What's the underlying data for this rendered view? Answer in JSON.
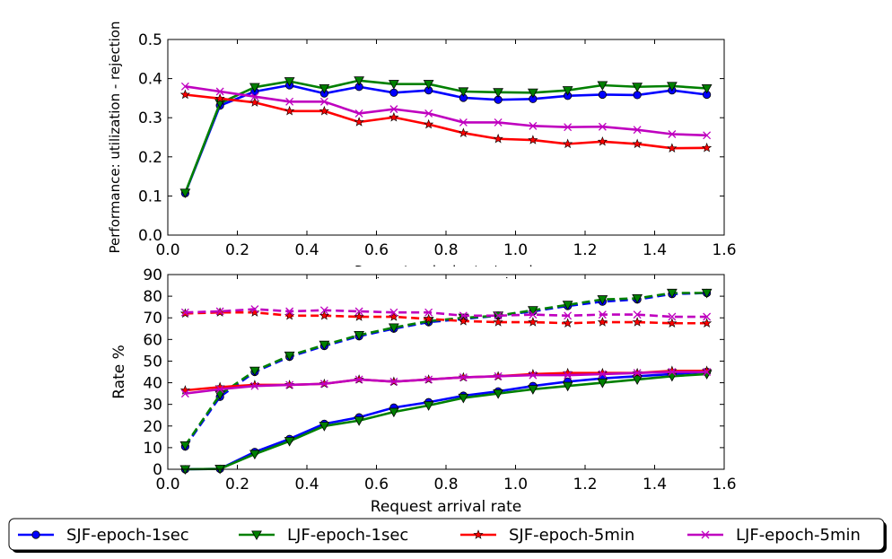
{
  "chart_data": [
    {
      "type": "line",
      "title": "",
      "xlabel": "Request arrival rate /epoch",
      "ylabel": "Performance: utilization - rejection",
      "xlim": [
        0,
        1.6
      ],
      "ylim": [
        0,
        0.5
      ],
      "xticks": [
        "0.0",
        "0.2",
        "0.4",
        "0.6",
        "0.8",
        "1.0",
        "1.2",
        "1.4",
        "1.6"
      ],
      "yticks": [
        "0.0",
        "0.1",
        "0.2",
        "0.3",
        "0.4",
        "0.5"
      ],
      "grid": false,
      "x": [
        0.05,
        0.15,
        0.25,
        0.35,
        0.45,
        0.55,
        0.65,
        0.75,
        0.85,
        0.95,
        1.05,
        1.15,
        1.25,
        1.35,
        1.45,
        1.55
      ],
      "series": [
        {
          "name": "SJF-epoch-1sec",
          "color": "#0000ff",
          "marker": "circle",
          "style": "solid",
          "values": [
            0.107,
            0.331,
            0.367,
            0.383,
            0.362,
            0.379,
            0.364,
            0.37,
            0.351,
            0.346,
            0.348,
            0.356,
            0.359,
            0.358,
            0.37,
            0.359
          ]
        },
        {
          "name": "LJF-epoch-1sec",
          "color": "#008000",
          "marker": "triangle-down",
          "style": "solid",
          "values": [
            0.108,
            0.337,
            0.378,
            0.393,
            0.375,
            0.395,
            0.386,
            0.386,
            0.367,
            0.365,
            0.364,
            0.37,
            0.383,
            0.379,
            0.381,
            0.375
          ]
        },
        {
          "name": "SJF-epoch-5min",
          "color": "#ff0000",
          "marker": "star",
          "style": "solid",
          "values": [
            0.359,
            0.349,
            0.339,
            0.317,
            0.317,
            0.289,
            0.301,
            0.283,
            0.261,
            0.246,
            0.243,
            0.233,
            0.239,
            0.233,
            0.222,
            0.223
          ]
        },
        {
          "name": "LJF-epoch-5min",
          "color": "#bf00bf",
          "marker": "x",
          "style": "solid",
          "values": [
            0.38,
            0.367,
            0.354,
            0.341,
            0.341,
            0.311,
            0.322,
            0.311,
            0.288,
            0.288,
            0.279,
            0.276,
            0.277,
            0.269,
            0.258,
            0.255
          ]
        }
      ]
    },
    {
      "type": "line",
      "title": "",
      "xlabel": "Request arrival rate",
      "ylabel": "Rate %",
      "xlim": [
        0,
        1.6
      ],
      "ylim": [
        0,
        90
      ],
      "xticks": [
        "0.0",
        "0.2",
        "0.4",
        "0.6",
        "0.8",
        "1.0",
        "1.2",
        "1.4",
        "1.6"
      ],
      "yticks": [
        "0",
        "10",
        "20",
        "30",
        "40",
        "50",
        "60",
        "70",
        "80",
        "90"
      ],
      "grid": false,
      "x": [
        0.05,
        0.15,
        0.25,
        0.35,
        0.45,
        0.55,
        0.65,
        0.75,
        0.85,
        0.95,
        1.05,
        1.15,
        1.25,
        1.35,
        1.45,
        1.55
      ],
      "series": [
        {
          "name": "SJF-epoch-1sec",
          "color": "#0000ff",
          "marker": "circle",
          "style": "solid",
          "values": [
            0,
            0.2,
            8,
            14,
            21,
            24,
            28.5,
            31,
            34,
            36,
            38.5,
            40.5,
            42,
            43,
            44,
            45
          ]
        },
        {
          "name": "SJF-epoch-1sec",
          "color": "#0000ff",
          "marker": "circle",
          "style": "dashed",
          "values": [
            10.5,
            33.5,
            45,
            52,
            57,
            61.5,
            65,
            68,
            69.5,
            71,
            73,
            75.5,
            77.5,
            78.5,
            81,
            81.5
          ]
        },
        {
          "name": "LJF-epoch-1sec",
          "color": "#008000",
          "marker": "triangle-down",
          "style": "solid",
          "values": [
            0,
            0.2,
            7,
            13,
            20,
            22.5,
            26.5,
            29.5,
            33,
            35,
            37,
            38.5,
            40,
            41.5,
            43,
            44
          ]
        },
        {
          "name": "LJF-epoch-1sec",
          "color": "#008000",
          "marker": "triangle-down",
          "style": "dashed",
          "values": [
            11,
            34.5,
            45.5,
            52.5,
            57.5,
            62,
            65.5,
            68.5,
            70,
            71,
            73.5,
            76,
            78.5,
            79,
            81.5,
            81.5
          ]
        },
        {
          "name": "SJF-epoch-5min",
          "color": "#ff0000",
          "marker": "star",
          "style": "solid",
          "values": [
            36.5,
            38,
            39,
            39,
            39.5,
            41.5,
            40.5,
            41.5,
            42.5,
            43,
            44,
            44.5,
            44.5,
            44.5,
            45.5,
            45.5
          ]
        },
        {
          "name": "SJF-epoch-5min",
          "color": "#ff0000",
          "marker": "star",
          "style": "dashed",
          "values": [
            72,
            72.5,
            72.5,
            71,
            71,
            70.5,
            70.5,
            69.5,
            68.5,
            68,
            68,
            67.5,
            68,
            68,
            67.5,
            67.5
          ]
        },
        {
          "name": "LJF-epoch-5min",
          "color": "#bf00bf",
          "marker": "x",
          "style": "solid",
          "values": [
            35,
            37,
            38.5,
            39,
            39.5,
            41.5,
            40.5,
            41.5,
            42.5,
            43,
            43.5,
            43.5,
            44,
            44.5,
            45,
            45
          ]
        },
        {
          "name": "LJF-epoch-5min",
          "color": "#bf00bf",
          "marker": "x",
          "style": "dashed",
          "values": [
            72.5,
            73,
            74,
            73,
            73.5,
            73,
            72.5,
            72.5,
            71,
            71,
            71.5,
            71,
            71.5,
            71.5,
            70.5,
            70.5
          ]
        }
      ]
    }
  ],
  "legend": {
    "placement": "bottom",
    "entries": [
      {
        "label": "SJF-epoch-1sec",
        "color": "#0000ff",
        "marker": "circle"
      },
      {
        "label": "LJF-epoch-1sec",
        "color": "#008000",
        "marker": "triangle-down"
      },
      {
        "label": "SJF-epoch-5min",
        "color": "#ff0000",
        "marker": "star"
      },
      {
        "label": "LJF-epoch-5min",
        "color": "#bf00bf",
        "marker": "x"
      }
    ]
  }
}
